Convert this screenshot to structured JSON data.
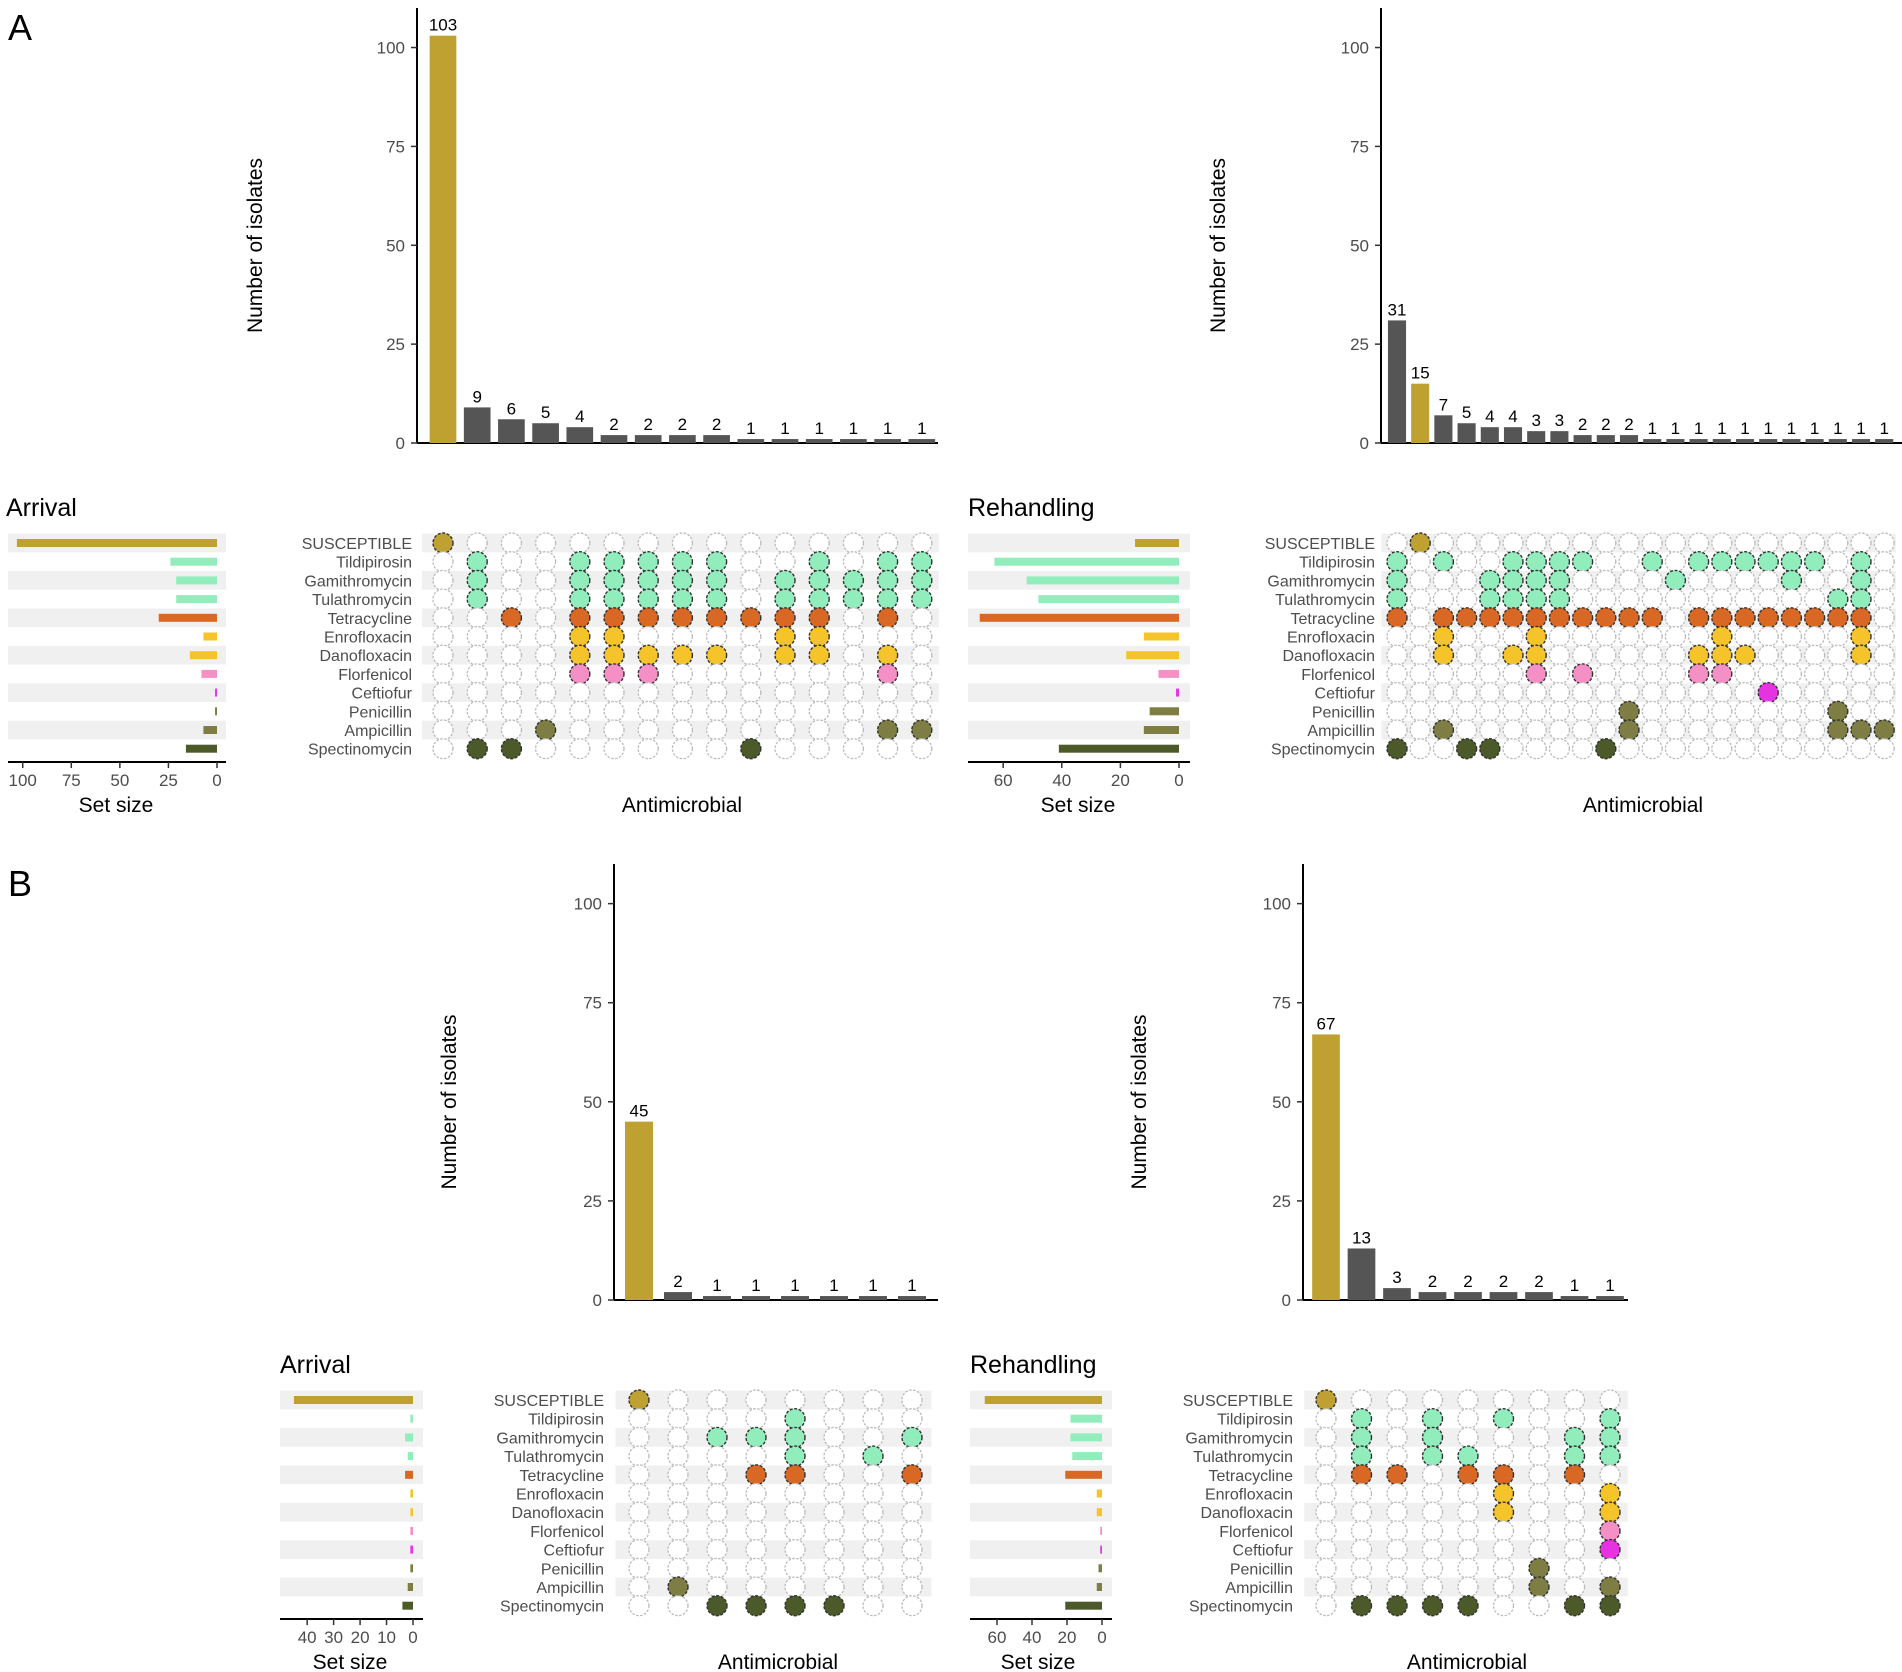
{
  "sets": [
    "SUSCEPTIBLE",
    "Tildipirosin",
    "Gamithromycin",
    "Tulathromycin",
    "Tetracycline",
    "Enrofloxacin",
    "Danofloxacin",
    "Florfenicol",
    "Ceftiofur",
    "Penicillin",
    "Ampicillin",
    "Spectinomycin"
  ],
  "colors": {
    "SUSCEPTIBLE": "#bfa132",
    "Tildipirosin": "#91eebc",
    "Gamithromycin": "#91eebc",
    "Tulathromycin": "#91eebc",
    "Tetracycline": "#d96824",
    "Enrofloxacin": "#f5c42a",
    "Danofloxacin": "#f5c42a",
    "Florfenicol": "#f590c6",
    "Ceftiofur": "#e632e0",
    "Penicillin": "#7d7d44",
    "Ampicillin": "#7d7d44",
    "Spectinomycin": "#4c5a2a",
    "dark_bar": "#555555",
    "band": "#f0f0f0"
  },
  "labels": {
    "panel_a": "A",
    "panel_b": "B",
    "y_axis": "Number of isolates",
    "x_axis": "Antimicrobial",
    "set_size": "Set size"
  },
  "chart_data": [
    {
      "type": "bar",
      "id": "A-arrival",
      "title": "Arrival",
      "ylabel": "Number of isolates",
      "xlabel": "Antimicrobial",
      "ylim": [
        0,
        110
      ],
      "yticks": [
        0,
        25,
        50,
        75,
        100
      ],
      "values": [
        103,
        9,
        6,
        5,
        4,
        2,
        2,
        2,
        2,
        1,
        1,
        1,
        1,
        1,
        1
      ],
      "combos": [
        [
          0
        ],
        [
          1,
          2,
          3,
          11
        ],
        [
          4,
          11
        ],
        [
          10
        ],
        [
          1,
          2,
          3,
          4,
          5,
          6,
          7
        ],
        [
          1,
          2,
          3,
          4,
          5,
          6,
          7
        ],
        [
          1,
          2,
          3,
          4,
          6,
          7
        ],
        [
          1,
          2,
          3,
          4,
          6
        ],
        [
          1,
          2,
          3,
          4,
          6
        ],
        [
          4,
          11
        ],
        [
          2,
          3,
          4,
          5,
          6
        ],
        [
          1,
          2,
          3,
          4,
          5,
          6
        ],
        [
          2,
          3
        ],
        [
          1,
          2,
          3,
          4,
          6,
          7,
          10
        ],
        [
          1,
          2,
          3,
          10
        ]
      ],
      "set_sizes": [
        103,
        24,
        21,
        21,
        30,
        7,
        14,
        8,
        1,
        1,
        7,
        16
      ],
      "set_xlim": [
        105,
        0
      ],
      "set_ticks": [
        100,
        75,
        50,
        25,
        0
      ]
    },
    {
      "type": "bar",
      "id": "A-rehandling",
      "title": "Rehandling",
      "ylabel": "Number of isolates",
      "xlabel": "Antimicrobial",
      "ylim": [
        0,
        110
      ],
      "yticks": [
        0,
        25,
        50,
        75,
        100
      ],
      "values": [
        31,
        15,
        7,
        5,
        4,
        4,
        3,
        3,
        2,
        2,
        2,
        1,
        1,
        1,
        1,
        1,
        1,
        1,
        1,
        1,
        1,
        1
      ],
      "combos": [
        [
          1,
          2,
          3,
          4,
          11
        ],
        [
          0
        ],
        [
          1,
          4,
          5,
          6,
          10
        ],
        [
          4,
          11
        ],
        [
          2,
          3,
          4,
          11
        ],
        [
          1,
          2,
          3,
          4,
          6
        ],
        [
          1,
          2,
          3,
          4,
          5,
          6,
          7
        ],
        [
          1,
          2,
          3,
          4
        ],
        [
          1,
          4,
          7
        ],
        [
          4,
          11
        ],
        [
          4,
          9,
          10
        ],
        [
          1,
          4
        ],
        [
          2
        ],
        [
          1,
          4,
          6,
          7
        ],
        [
          1,
          4,
          5,
          6,
          7
        ],
        [
          1,
          4,
          6
        ],
        [
          1,
          4,
          8
        ],
        [
          1,
          2,
          4
        ],
        [
          1,
          4
        ],
        [
          3,
          4,
          9,
          10
        ],
        [
          1,
          2,
          3,
          4,
          5,
          6,
          10
        ],
        [
          10
        ]
      ],
      "set_sizes": [
        15,
        63,
        52,
        48,
        68,
        12,
        18,
        7,
        1,
        10,
        12,
        41
      ],
      "set_xlim": [
        72,
        0
      ],
      "set_ticks": [
        60,
        40,
        20,
        0
      ]
    },
    {
      "type": "bar",
      "id": "B-arrival",
      "title": "Arrival",
      "ylabel": "Number of isolates",
      "xlabel": "Antimicrobial",
      "ylim": [
        0,
        110
      ],
      "yticks": [
        0,
        25,
        50,
        75,
        100
      ],
      "values": [
        45,
        2,
        1,
        1,
        1,
        1,
        1,
        1
      ],
      "combos": [
        [
          0
        ],
        [
          10
        ],
        [
          2,
          11
        ],
        [
          2,
          4,
          11
        ],
        [
          1,
          2,
          3,
          4,
          11
        ],
        [
          11
        ],
        [
          3
        ],
        [
          2,
          4
        ]
      ],
      "set_sizes": [
        45,
        1,
        3,
        2,
        3,
        1,
        1,
        1,
        1,
        1,
        2,
        4
      ],
      "set_xlim": [
        48,
        0
      ],
      "set_ticks": [
        40,
        30,
        20,
        10,
        0
      ]
    },
    {
      "type": "bar",
      "id": "B-rehandling",
      "title": "Rehandling",
      "ylabel": "Number of isolates",
      "xlabel": "Antimicrobial",
      "ylim": [
        0,
        110
      ],
      "yticks": [
        0,
        25,
        50,
        75,
        100
      ],
      "values": [
        67,
        13,
        3,
        2,
        2,
        2,
        2,
        1,
        1
      ],
      "combos": [
        [
          0
        ],
        [
          1,
          2,
          3,
          4,
          11
        ],
        [
          4,
          11
        ],
        [
          1,
          2,
          3,
          11
        ],
        [
          3,
          4,
          11
        ],
        [
          1,
          4,
          5,
          6
        ],
        [
          9,
          10
        ],
        [
          2,
          3,
          4,
          11
        ],
        [
          1,
          2,
          3,
          5,
          6,
          7,
          8,
          10,
          11
        ]
      ],
      "set_sizes": [
        67,
        18,
        18,
        17,
        21,
        3,
        3,
        1,
        1,
        2,
        3,
        21
      ],
      "set_xlim": [
        72,
        0
      ],
      "set_ticks": [
        60,
        40,
        20,
        0
      ]
    }
  ]
}
